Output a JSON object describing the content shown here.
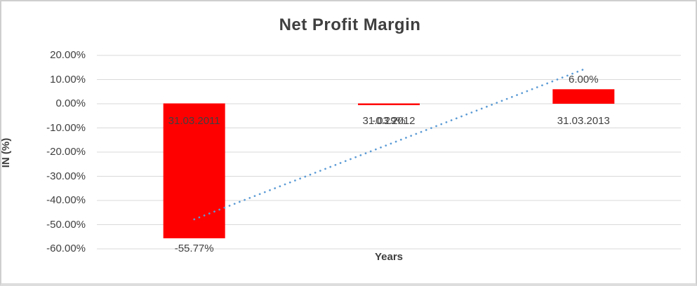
{
  "window": {
    "background": "#ffffff",
    "border_color": "#cfcfcf"
  },
  "chart_data": {
    "type": "bar",
    "title": "Net Profit Margin",
    "xlabel": "Years",
    "ylabel": "IN (%)",
    "categories": [
      "31.03.2011",
      "31.03.2012",
      "31.03.2013"
    ],
    "series": [
      {
        "name": "Net Profit Margin",
        "values": [
          -55.77,
          -0.29,
          6.0
        ],
        "color": "#ff0000"
      }
    ],
    "data_labels": [
      "-55.77%",
      "-0.29%",
      "6.00%"
    ],
    "y_ticks": [
      "20.00%",
      "10.00%",
      "0.00%",
      "-10.00%",
      "-20.00%",
      "-30.00%",
      "-40.00%",
      "-50.00%",
      "-60.00%"
    ],
    "y_tick_values": [
      20,
      10,
      0,
      -10,
      -20,
      -30,
      -40,
      -50,
      -60
    ],
    "ylim": [
      -60,
      20
    ],
    "grid": true,
    "legend": "none",
    "gridline_color": "#d9d9d9",
    "text_color": "#404040",
    "trendline": {
      "style": "dotted",
      "color": "#5b9bd5",
      "start_value": -47.8,
      "end_value": 14.2
    }
  }
}
